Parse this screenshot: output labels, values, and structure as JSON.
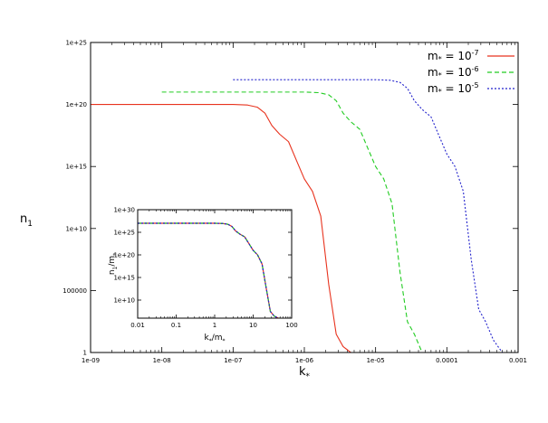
{
  "chart_data": [
    {
      "type": "line",
      "title": "",
      "xlabel": "k",
      "xlabel_sub": "*",
      "ylabel": "n",
      "ylabel_sub": "1",
      "xscale": "log",
      "yscale": "log",
      "xlim": [
        1e-09,
        0.001
      ],
      "ylim": [
        1,
        1e+25
      ],
      "xticks": [
        "1e-09",
        "1e-08",
        "1e-07",
        "1e-06",
        "1e-05",
        "0.0001",
        "0.001"
      ],
      "yticks": [
        "1",
        "100000",
        "1e+10",
        "1e+15",
        "1e+20",
        "1e+25"
      ],
      "legend_position": "top-right",
      "series": [
        {
          "name": "m* = 10^-7",
          "legend": {
            "base": "m",
            "sub": "*",
            "eq": " = 10",
            "exp": "-7"
          },
          "color": "#e8331e",
          "dash": "solid",
          "x": [
            1e-09,
            1e-08,
            1e-07,
            1.6e-07,
            2.2e-07,
            2.8e-07,
            3.5e-07,
            4.5e-07,
            6e-07,
            8e-07,
            1e-06,
            1.3e-06,
            1.7e-06,
            2.2e-06,
            2.8e-06,
            3.5e-06,
            4.5e-06
          ],
          "y": [
            1e+20,
            1e+20,
            1e+20,
            9e+19,
            6e+19,
            2e+19,
            2e+18,
            4e+17,
            1e+17,
            2000000000000000.0,
            100000000000000.0,
            10000000000000.0,
            100000000000.0,
            300000.0,
            30,
            3,
            1
          ]
        },
        {
          "name": "m* = 10^-6",
          "legend": {
            "base": "m",
            "sub": "*",
            "eq": " = 10",
            "exp": "-6"
          },
          "color": "#22cc22",
          "dash": "5,3",
          "x": [
            1e-08,
            1e-07,
            1e-06,
            1.6e-06,
            2.2e-06,
            2.8e-06,
            3.5e-06,
            4.5e-06,
            6e-06,
            8e-06,
            1e-05,
            1.3e-05,
            1.7e-05,
            2.2e-05,
            2.8e-05,
            3.5e-05,
            4.5e-05
          ],
          "y": [
            1e+21,
            1e+21,
            1e+21,
            9e+20,
            6e+20,
            2e+20,
            2e+19,
            4e+18,
            1e+18,
            2e+16,
            1000000000000000.0,
            100000000000000.0,
            1000000000000.0,
            3000000.0,
            300,
            30,
            1
          ]
        },
        {
          "name": "m* = 10^-5",
          "legend": {
            "base": "m",
            "sub": "*",
            "eq": " = 10",
            "exp": "-5"
          },
          "color": "#2222cc",
          "dash": "2,2",
          "x": [
            1e-07,
            1e-06,
            1e-05,
            1.6e-05,
            2.2e-05,
            2.8e-05,
            3.5e-05,
            4.5e-05,
            6e-05,
            8e-05,
            0.0001,
            0.00013,
            0.00017,
            0.00022,
            0.00028,
            0.00035,
            0.00045,
            0.0006
          ],
          "y": [
            1e+22,
            1e+22,
            1e+22,
            9e+21,
            6e+21,
            2e+21,
            2e+20,
            4e+19,
            1e+19,
            2e+17,
            1e+16,
            1000000000000000.0,
            10000000000000.0,
            30000000.0,
            3000,
            300,
            10,
            1
          ]
        }
      ]
    },
    {
      "type": "line",
      "title": "",
      "xlabel": "k",
      "xlabel_sub": "*",
      "xlabel_tail": "/m",
      "xlabel_sub2": "*",
      "ylabel": "n",
      "ylabel_sub": "1",
      "ylabel_tail": "/m",
      "ylabel_sub2": "*",
      "xscale": "log",
      "yscale": "log",
      "xlim": [
        0.01,
        100
      ],
      "ylim": [
        1000000.0,
        1e+30
      ],
      "xticks": [
        "0.01",
        "0.1",
        "1",
        "10",
        "100"
      ],
      "yticks": [
        "1e+10",
        "1e+15",
        "1e+20",
        "1e+25",
        "1e+30"
      ],
      "series": [
        {
          "color": "#e8331e",
          "dash": "solid",
          "x": [
            0.01,
            0.1,
            1,
            1.6,
            2.2,
            2.8,
            3.5,
            4.5,
            6,
            8,
            10,
            13,
            17,
            22,
            28,
            35,
            45
          ],
          "y": [
            1e+27,
            1e+27,
            1e+27,
            9e+26,
            6e+26,
            2e+26,
            2e+25,
            4e+24,
            1e+24,
            2e+22,
            1e+21,
            1e+20,
            1e+18,
            3000000000000.0,
            30000000.0,
            3000000.0,
            1000000.0
          ]
        },
        {
          "color": "#22cc22",
          "dash": "4,3",
          "x": [
            0.01,
            0.1,
            1,
            1.6,
            2.2,
            2.8,
            3.5,
            4.5,
            6,
            8,
            10,
            13,
            17,
            22,
            28,
            35,
            45
          ],
          "y": [
            1e+27,
            1e+27,
            1e+27,
            9e+26,
            6e+26,
            2e+26,
            2e+25,
            4e+24,
            1e+24,
            2e+22,
            1e+21,
            1e+20,
            1e+18,
            3000000000000.0,
            30000000.0,
            3000000.0,
            1000000.0
          ]
        },
        {
          "color": "#2222cc",
          "dash": "2,2",
          "x": [
            0.01,
            0.1,
            1,
            1.6,
            2.2,
            2.8,
            3.5,
            4.5,
            6,
            8,
            10,
            13,
            17,
            22,
            28,
            35,
            45
          ],
          "y": [
            1e+27,
            1e+27,
            1e+27,
            9e+26,
            6e+26,
            2e+26,
            2e+25,
            4e+24,
            1e+24,
            2e+22,
            1e+21,
            1e+20,
            1e+18,
            3000000000000.0,
            30000000.0,
            3000000.0,
            1000000.0
          ]
        }
      ]
    }
  ]
}
